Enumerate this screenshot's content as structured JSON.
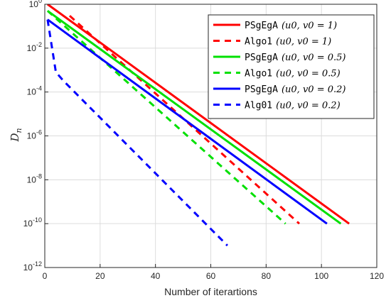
{
  "chart_data": {
    "type": "line",
    "xlabel": "Number of iterartions",
    "ylabel_main": "D",
    "ylabel_sub": "n",
    "xlim": [
      0,
      120
    ],
    "xticks": [
      "0",
      "20",
      "40",
      "60",
      "80",
      "100",
      "120"
    ],
    "ylim_log10": [
      -12,
      0
    ],
    "yscale": "log",
    "yticks": [
      {
        "base": "10",
        "exp": "0"
      },
      {
        "base": "10",
        "exp": "-2"
      },
      {
        "base": "10",
        "exp": "-4"
      },
      {
        "base": "10",
        "exp": "-6"
      },
      {
        "base": "10",
        "exp": "-8"
      },
      {
        "base": "10",
        "exp": "-10"
      },
      {
        "base": "10",
        "exp": "-12"
      }
    ],
    "grid": true,
    "legend_position": "top-right",
    "series": [
      {
        "name": "PSgEgA",
        "param": "(u0, v0 = 1)",
        "style": "solid",
        "color": "#ff0000",
        "x": [
          1,
          110
        ],
        "y": [
          1,
          1e-10
        ]
      },
      {
        "name": "Algo1",
        "param": "(u0, v0 = 1)",
        "style": "dashed",
        "color": "#ff0000",
        "x": [
          9,
          92
        ],
        "y": [
          0.3,
          1e-10
        ]
      },
      {
        "name": "PSgEgA",
        "param": "(u0, v0 = 0.5)",
        "style": "solid",
        "color": "#00e000",
        "x": [
          1,
          107
        ],
        "y": [
          0.5,
          1e-10
        ]
      },
      {
        "name": "Algo1",
        "param": "(u0, v0 = 0.5)",
        "style": "dashed",
        "color": "#00e000",
        "x": [
          1,
          87
        ],
        "y": [
          0.5,
          1e-10
        ]
      },
      {
        "name": "PSgEgA",
        "param": "(u0, v0 = 0.2)",
        "style": "solid",
        "color": "#0000ff",
        "x": [
          1,
          102
        ],
        "y": [
          0.2,
          1e-10
        ]
      },
      {
        "name": "Alg01",
        "param": "(u0, v0 = 0.2)",
        "style": "dashed",
        "color": "#0000ff",
        "x": [
          1,
          4,
          7,
          66
        ],
        "y": [
          0.2,
          0.0008,
          0.0003,
          1e-11
        ]
      }
    ]
  }
}
